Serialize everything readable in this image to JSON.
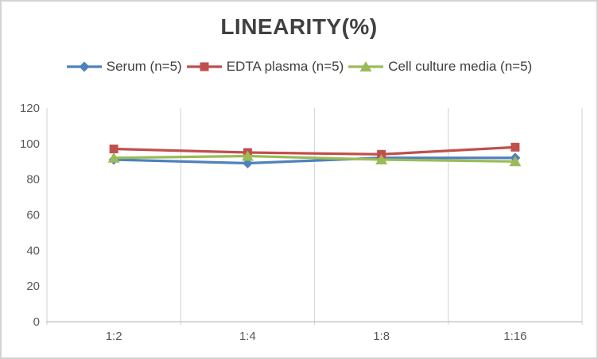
{
  "chart_data": {
    "type": "line",
    "title": "LINEARITY(%)",
    "categories": [
      "1:2",
      "1:4",
      "1:8",
      "1:16"
    ],
    "series": [
      {
        "name": "Serum (n=5)",
        "color": "#4F81BD",
        "marker": "diamond",
        "values": [
          91,
          89,
          92,
          92
        ]
      },
      {
        "name": "EDTA plasma (n=5)",
        "color": "#C0504D",
        "marker": "square",
        "values": [
          97,
          95,
          94,
          98
        ]
      },
      {
        "name": "Cell culture media (n=5)",
        "color": "#9BBB59",
        "marker": "triangle",
        "values": [
          92,
          93,
          91,
          90
        ]
      }
    ],
    "xlabel": "",
    "ylabel": "",
    "ylim": [
      0,
      120
    ],
    "y_ticks": [
      0,
      20,
      40,
      60,
      80,
      100,
      120
    ],
    "grid": "vertical-category-boundaries-only",
    "legend_position": "top",
    "colors": {
      "title_text": "#404040",
      "legend_text": "#3F3F3F",
      "axis_text": "#595959",
      "gridline": "#D9D9D9",
      "axis_line": "#BFBFBF",
      "frame_border": "#D3D3D3",
      "background": "#FFFFFF"
    }
  }
}
